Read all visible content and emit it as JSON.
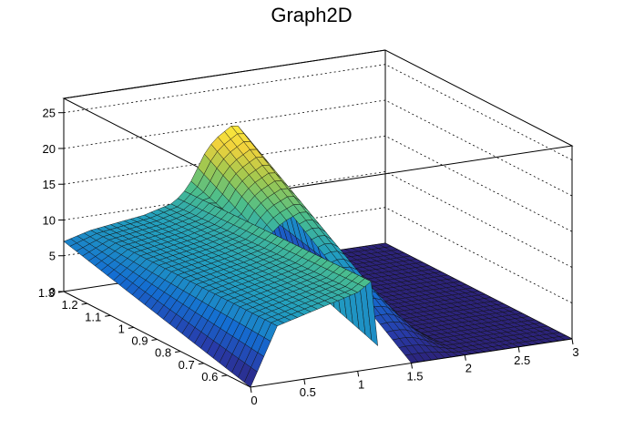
{
  "chart_data": {
    "type": "surface",
    "title": "Graph2D",
    "xlabel": "",
    "ylabel": "",
    "zlabel": "",
    "xlim": [
      0,
      3
    ],
    "ylim": [
      0.5,
      1.3
    ],
    "zlim": [
      0,
      27
    ],
    "x_ticks": [
      "0",
      "0.5",
      "1",
      "1.5",
      "2",
      "2.5",
      "3"
    ],
    "y_ticks": [
      "0.6",
      "0.7",
      "0.8",
      "0.9",
      "1",
      "1.1",
      "1.2",
      "1.3"
    ],
    "z_ticks": [
      "0",
      "5",
      "10",
      "15",
      "20",
      "25"
    ],
    "z_grid": true,
    "colormap": "viridis-like (navy, blue, teal, green, yellow)",
    "surface_profile": {
      "x": [
        0.0,
        0.25,
        0.5,
        0.75,
        1.0,
        1.1,
        1.15,
        1.2,
        1.3,
        1.4,
        1.5,
        1.6,
        1.7,
        1.8,
        1.9,
        2.0,
        2.5,
        3.0
      ],
      "z_at_low_y": [
        0,
        8,
        9,
        10,
        11,
        12,
        12.5,
        0,
        0,
        0,
        0,
        0,
        0,
        0,
        0,
        0,
        0,
        0
      ],
      "z_at_high_y": [
        7,
        8,
        8.5,
        9,
        10,
        11,
        12,
        13,
        16,
        18,
        19,
        20,
        18,
        12,
        5,
        0,
        0,
        0
      ],
      "note_y_values": [
        0.5,
        1.3
      ]
    },
    "gap_region": {
      "x_range": [
        1.2,
        1.5
      ],
      "y_range": [
        0.5,
        1.0
      ]
    }
  }
}
